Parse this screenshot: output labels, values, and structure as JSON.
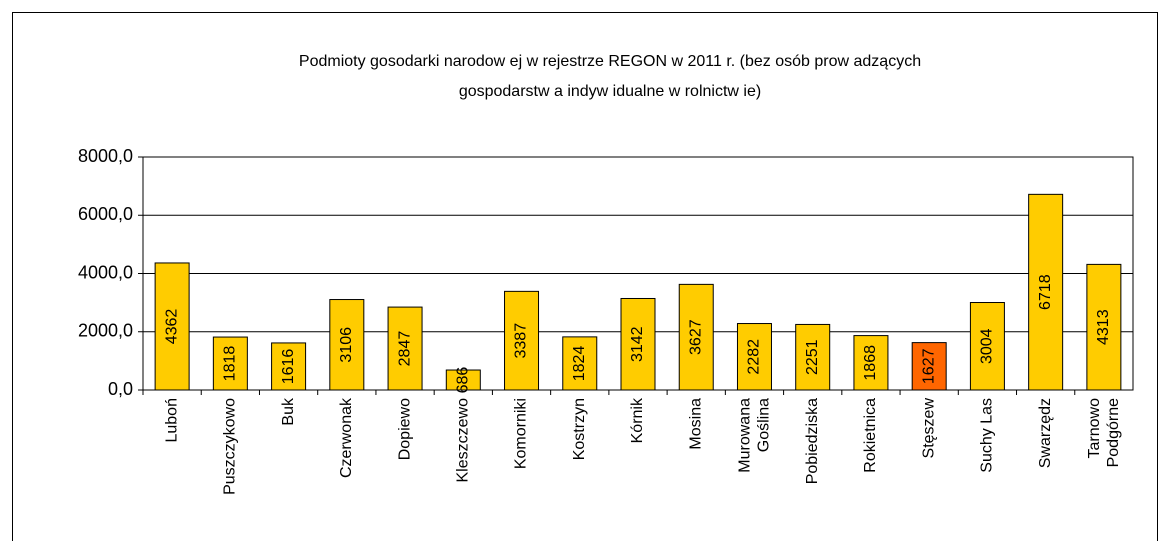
{
  "chart_data": {
    "type": "bar",
    "title": [
      "Podmioty gosodarki narodow ej w  rejestrze REGON w  2011 r. (bez osób prow adzących",
      "gospodarstw a indyw idualne w  rolnictw ie)"
    ],
    "categories": [
      "Luboń",
      "Puszczykowo",
      "Buk",
      "Czerwonak",
      "Dopiewo",
      "Kleszczewo",
      "Komorniki",
      "Kostrzyn",
      "Kórnik",
      "Mosina",
      "Murowana Goślina",
      "Pobiedziska",
      "Rokietnica",
      "Stęszew",
      "Suchy Las",
      "Swarzędz",
      "Tarnowo Podgórne"
    ],
    "values": [
      4362,
      1818,
      1616,
      3106,
      2847,
      686,
      3387,
      1824,
      3142,
      3627,
      2282,
      2251,
      1868,
      1627,
      3004,
      6718,
      4313
    ],
    "colors": [
      "#ffcc00",
      "#ffcc00",
      "#ffcc00",
      "#ffcc00",
      "#ffcc00",
      "#ffcc00",
      "#ffcc00",
      "#ffcc00",
      "#ffcc00",
      "#ffcc00",
      "#ffcc00",
      "#ffcc00",
      "#ffcc00",
      "#ff6600",
      "#ffcc00",
      "#ffcc00",
      "#ffcc00"
    ],
    "ylim": [
      0,
      8000
    ],
    "yticks": [
      {
        "value": 0,
        "label": "0,0"
      },
      {
        "value": 2000,
        "label": "2000,0"
      },
      {
        "value": 4000,
        "label": "4000,0"
      },
      {
        "value": 6000,
        "label": "6000,0"
      },
      {
        "value": 8000,
        "label": "8000,0"
      }
    ],
    "grid": true
  }
}
